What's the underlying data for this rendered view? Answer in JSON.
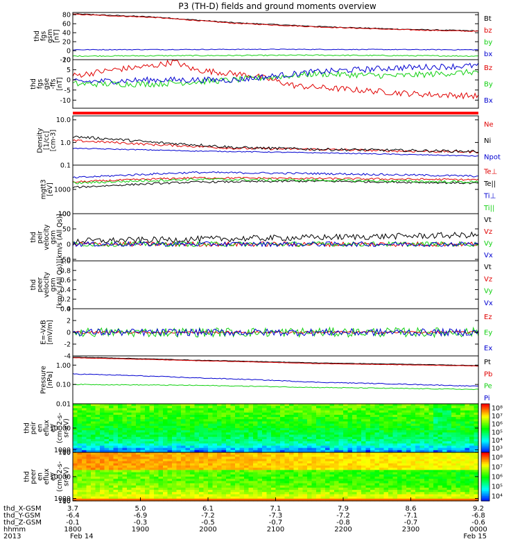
{
  "title": "P3 (TH-D) fields and ground moments overview",
  "colors": {
    "black": "#000000",
    "red": "#e00000",
    "green": "#10d010",
    "blue": "#0000d0",
    "bar_red": "#ff0000"
  },
  "chart_data": [
    {
      "id": "fgs_gsm",
      "type": "line",
      "ylabel": [
        "thd",
        "fgs",
        "gsm",
        "[nT]"
      ],
      "ylim": [
        -20,
        85
      ],
      "yticks": [
        "80",
        "60",
        "40",
        "20",
        "0",
        "-20"
      ],
      "ytick_values": [
        80,
        60,
        40,
        20,
        0,
        -20
      ],
      "series": [
        {
          "name": "Bt",
          "color": "black",
          "points": [
            [
              0,
              82
            ],
            [
              0.2,
              75
            ],
            [
              0.4,
              62
            ],
            [
              0.6,
              54
            ],
            [
              0.8,
              48
            ],
            [
              1,
              44
            ]
          ],
          "noise": 1
        },
        {
          "name": "bz",
          "color": "red",
          "points": [
            [
              0,
              81
            ],
            [
              0.2,
              74
            ],
            [
              0.4,
              61
            ],
            [
              0.6,
              53
            ],
            [
              0.8,
              47
            ],
            [
              1,
              43
            ]
          ],
          "noise": 1
        },
        {
          "name": "by",
          "color": "green",
          "points": [
            [
              0,
              -12
            ],
            [
              0.3,
              -11
            ],
            [
              0.6,
              -10
            ],
            [
              1,
              -12
            ]
          ],
          "noise": 1.2
        },
        {
          "name": "bx",
          "color": "blue",
          "points": [
            [
              0,
              2
            ],
            [
              0.5,
              3
            ],
            [
              1,
              2
            ]
          ],
          "noise": 0.8
        }
      ]
    },
    {
      "id": "fgs_dsl",
      "type": "line",
      "ylabel": [
        "thd",
        "fgs",
        "gse",
        "-ffs",
        "[nT]"
      ],
      "ylim": [
        -14,
        10
      ],
      "yticks": [
        "10",
        "5",
        "0",
        "-5",
        "-10"
      ],
      "ytick_values": [
        10,
        5,
        0,
        -5,
        -10
      ],
      "series": [
        {
          "name": "Bz",
          "color": "red",
          "points": [
            [
              0,
              2
            ],
            [
              0.1,
              5
            ],
            [
              0.2,
              7
            ],
            [
              0.25,
              9
            ],
            [
              0.3,
              5
            ],
            [
              0.45,
              2
            ],
            [
              0.55,
              -3
            ],
            [
              0.7,
              -5
            ],
            [
              0.85,
              -7
            ],
            [
              1,
              -8
            ]
          ],
          "noise": 1.5
        },
        {
          "name": "By",
          "color": "green",
          "points": [
            [
              0,
              -2
            ],
            [
              0.2,
              -2
            ],
            [
              0.4,
              0
            ],
            [
              0.6,
              3
            ],
            [
              0.8,
              2
            ],
            [
              1,
              4
            ]
          ],
          "noise": 1.5
        },
        {
          "name": "Bx",
          "color": "blue",
          "points": [
            [
              0,
              -1
            ],
            [
              0.2,
              0
            ],
            [
              0.4,
              0
            ],
            [
              0.6,
              4
            ],
            [
              0.8,
              6
            ],
            [
              1,
              7
            ]
          ],
          "noise": 1.5
        }
      ]
    },
    {
      "id": "density",
      "type": "line",
      "log": true,
      "ylabel": [
        "Density",
        "[1/cc]",
        "[cm-3]"
      ],
      "ylim": [
        0.1,
        15
      ],
      "yticks": [
        "10.0",
        "1.0",
        "0.1"
      ],
      "ytick_values": [
        10,
        1,
        0.1
      ],
      "series": [
        {
          "name": "Ne",
          "color": "red",
          "points": [
            [
              0,
              1.2
            ],
            [
              0.2,
              0.8
            ],
            [
              0.4,
              0.55
            ],
            [
              0.6,
              0.5
            ],
            [
              0.8,
              0.42
            ],
            [
              1,
              0.38
            ]
          ],
          "noise": 0.05
        },
        {
          "name": "Ni",
          "color": "black",
          "points": [
            [
              0,
              1.8
            ],
            [
              0.2,
              1.0
            ],
            [
              0.4,
              0.6
            ],
            [
              0.6,
              0.5
            ],
            [
              0.8,
              0.45
            ],
            [
              1,
              0.4
            ]
          ],
          "noise": 0.06
        },
        {
          "name": "Npot",
          "color": "blue",
          "points": [
            [
              0,
              0.55
            ],
            [
              0.3,
              0.42
            ],
            [
              0.6,
              0.35
            ],
            [
              1,
              0.25
            ]
          ],
          "noise": 0.02
        }
      ]
    },
    {
      "id": "temperature",
      "type": "line",
      "log": true,
      "ylabel": [
        "mgtt3",
        "[eV]"
      ],
      "ylim": [
        100,
        10000
      ],
      "yticks": [
        "1000",
        "100"
      ],
      "ytick_values": [
        1000,
        100
      ],
      "series": [
        {
          "name": "Te⊥",
          "color": "red",
          "points": [
            [
              0,
              2000
            ],
            [
              0.3,
              3000
            ],
            [
              0.6,
              2800
            ],
            [
              1,
              2500
            ]
          ],
          "noise": 0.04
        },
        {
          "name": "Te||",
          "color": "black",
          "points": [
            [
              0,
              1200
            ],
            [
              0.3,
              2000
            ],
            [
              0.6,
              2200
            ],
            [
              1,
              1800
            ]
          ],
          "noise": 0.04
        },
        {
          "name": "Ti⊥",
          "color": "blue",
          "points": [
            [
              0,
              3000
            ],
            [
              0.3,
              5000
            ],
            [
              0.6,
              4500
            ],
            [
              1,
              3500
            ]
          ],
          "noise": 0.04
        },
        {
          "name": "Ti||",
          "color": "green",
          "points": [
            [
              0,
              1800
            ],
            [
              0.3,
              2600
            ],
            [
              0.6,
              2400
            ],
            [
              1,
              2000
            ]
          ],
          "noise": 0.05
        }
      ]
    },
    {
      "id": "peir_velocity",
      "type": "line",
      "ylabel": [
        "thd",
        "peir",
        "velocity",
        "gsm",
        "[km/s (All Qs)]"
      ],
      "ylim": [
        -55,
        100
      ],
      "yticks": [
        "100",
        "50",
        "0",
        "-50"
      ],
      "ytick_values": [
        100,
        50,
        0,
        -50
      ],
      "series": [
        {
          "name": "Vt",
          "color": "black",
          "points": [
            [
              0,
              10
            ],
            [
              0.5,
              20
            ],
            [
              1,
              30
            ]
          ],
          "noise": 10
        },
        {
          "name": "Vz",
          "color": "red",
          "points": [
            [
              0,
              0
            ],
            [
              1,
              0
            ]
          ],
          "noise": 8
        },
        {
          "name": "Vy",
          "color": "green",
          "points": [
            [
              0,
              0
            ],
            [
              1,
              0
            ]
          ],
          "noise": 8
        },
        {
          "name": "Vx",
          "color": "blue",
          "points": [
            [
              0,
              0
            ],
            [
              1,
              0
            ]
          ],
          "noise": 8
        }
      ]
    },
    {
      "id": "peer_velocity",
      "type": "line",
      "ylabel": [
        "thd",
        "peer",
        "velocity",
        "gsm",
        "[km/s (All Qs)]"
      ],
      "ylim": [
        0,
        1
      ],
      "yticks": [
        "1.0",
        "0.8",
        "0.6",
        "0.4",
        "0.2",
        "0.0"
      ],
      "ytick_values": [
        1.0,
        0.8,
        0.6,
        0.4,
        0.2,
        0.0
      ],
      "series": [
        {
          "name": "Vt",
          "color": "black",
          "points": []
        },
        {
          "name": "Vz",
          "color": "red",
          "points": []
        },
        {
          "name": "Vy",
          "color": "green",
          "points": []
        },
        {
          "name": "Vx",
          "color": "blue",
          "points": []
        }
      ]
    },
    {
      "id": "efield",
      "type": "line",
      "ylabel": [
        "E=-VxB",
        "[mV/m]"
      ],
      "ylim": [
        -4,
        4
      ],
      "yticks": [
        "4",
        "2",
        "0",
        "-2",
        "-4"
      ],
      "ytick_values": [
        4,
        2,
        0,
        -2,
        -4
      ],
      "series": [
        {
          "name": "Ez",
          "color": "red",
          "points": [
            [
              0,
              0
            ],
            [
              1,
              0
            ]
          ],
          "noise": 0.2
        },
        {
          "name": "Ey",
          "color": "green",
          "points": [
            [
              0,
              0
            ],
            [
              1,
              0
            ]
          ],
          "noise": 0.8
        },
        {
          "name": "Ex",
          "color": "blue",
          "points": [
            [
              0,
              0
            ],
            [
              1,
              0
            ]
          ],
          "noise": 0.6
        }
      ]
    },
    {
      "id": "pressure",
      "type": "line",
      "log": true,
      "ylabel": [
        "Pressure",
        "[nPa]"
      ],
      "ylim": [
        0.01,
        3
      ],
      "yticks": [
        "1.00",
        "0.10",
        "0.01"
      ],
      "ytick_values": [
        1.0,
        0.1,
        0.01
      ],
      "series": [
        {
          "name": "Pt",
          "color": "black",
          "points": [
            [
              0,
              2.6
            ],
            [
              0.3,
              1.8
            ],
            [
              0.6,
              1.3
            ],
            [
              1,
              0.95
            ]
          ],
          "noise": 0.01
        },
        {
          "name": "Pb",
          "color": "red",
          "points": [
            [
              0,
              2.4
            ],
            [
              0.3,
              1.7
            ],
            [
              0.6,
              1.2
            ],
            [
              1,
              0.9
            ]
          ],
          "noise": 0.01
        },
        {
          "name": "Pe",
          "color": "green",
          "points": [
            [
              0,
              0.1
            ],
            [
              0.3,
              0.09
            ],
            [
              0.6,
              0.07
            ],
            [
              1,
              0.055
            ]
          ],
          "noise": 0.02
        },
        {
          "name": "Pi",
          "color": "blue",
          "points": [
            [
              0,
              0.35
            ],
            [
              0.3,
              0.22
            ],
            [
              0.6,
              0.13
            ],
            [
              1,
              0.08
            ]
          ],
          "noise": 0.02
        }
      ]
    },
    {
      "id": "peir_spectrogram",
      "type": "heatmap",
      "ylabel": [
        "thd",
        "peir",
        "en",
        "eflux",
        "eV",
        "(cm^2-s-",
        "sr-eV)"
      ],
      "ylim": [
        7,
        20000
      ],
      "yticks": [
        "10000",
        "1000",
        "100",
        "10"
      ],
      "ytick_values": [
        10000,
        1000,
        100,
        10
      ],
      "colorbar": [
        "10⁸",
        "10⁷",
        "10⁶",
        "10⁵",
        "10⁴",
        "10³"
      ],
      "colorbar_values": [
        8,
        7,
        6,
        5,
        4,
        3
      ]
    },
    {
      "id": "peer_spectrogram",
      "type": "heatmap",
      "ylabel": [
        "thd",
        "peer",
        "en",
        "eflux",
        "eV",
        "(cm^2-s-",
        "sr-eV)"
      ],
      "ylim": [
        7,
        20000
      ],
      "yticks": [
        "10000",
        "1000",
        "100",
        "10"
      ],
      "ytick_values": [
        10000,
        1000,
        100,
        10
      ],
      "colorbar": [
        "10⁸",
        "10⁷",
        "10⁶",
        "10⁵",
        "10⁴"
      ],
      "colorbar_values": [
        8,
        7,
        6,
        5,
        4
      ]
    }
  ],
  "footer": {
    "row_labels": [
      "thd_X-GSM",
      "thd_Y-GSM",
      "thd_Z-GSM",
      "hhmm",
      "2013"
    ],
    "columns": [
      [
        "3.7",
        "-6.4",
        "-0.1",
        "1800",
        "Feb 14"
      ],
      [
        "5.0",
        "-6.9",
        "-0.3",
        "1900",
        ""
      ],
      [
        "6.1",
        "-7.2",
        "-0.5",
        "2000",
        ""
      ],
      [
        "7.1",
        "-7.3",
        "-0.7",
        "2100",
        ""
      ],
      [
        "7.9",
        "-7.2",
        "-0.8",
        "2200",
        ""
      ],
      [
        "8.6",
        "-7.1",
        "-0.7",
        "2300",
        ""
      ],
      [
        "9.2",
        "-6.8",
        "-0.6",
        "0000",
        "Feb 15"
      ]
    ]
  }
}
